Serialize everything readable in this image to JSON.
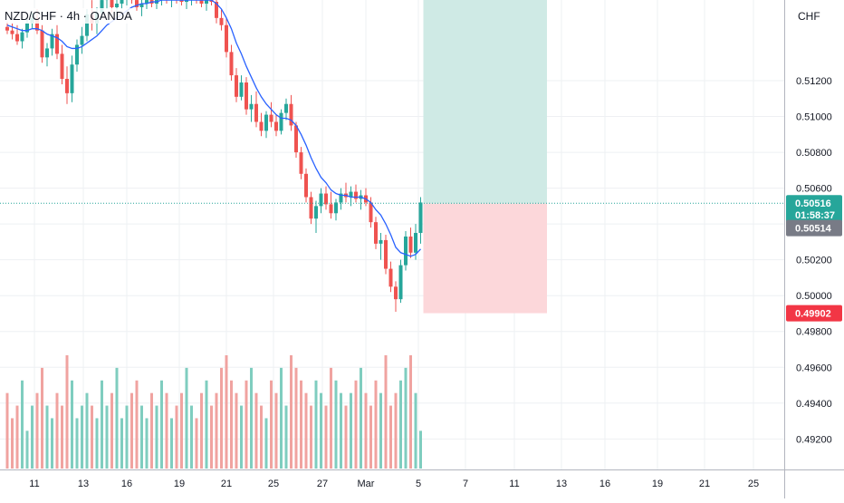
{
  "header": {
    "symbol_title": "NZD/CHF · 4h · OANDA",
    "currency": "CHF"
  },
  "colors": {
    "up": "#26a69a",
    "down": "#ef5350",
    "volume_up": "#7fcdbf",
    "volume_down": "#f0a3a0",
    "ma_line": "#2962ff",
    "target_zone": "#cfeae5",
    "stop_zone": "#fcd7da",
    "price_tag": "#26a69a",
    "stop_tag": "#f23645",
    "entry_tag": "#787b86",
    "grid": "#eef0f3"
  },
  "chart_data": {
    "type": "candlestick",
    "title": "NZD/CHF · 4h · OANDA",
    "ylabel": "CHF",
    "ylim": [
      0.4906,
      0.5162
    ],
    "y_ticks": [
      "0.51200",
      "0.51000",
      "0.50800",
      "0.50600",
      "0.50400",
      "0.50200",
      "0.50000",
      "0.49800",
      "0.49600",
      "0.49400",
      "0.49200"
    ],
    "x_ticks": [
      "11",
      "13",
      "16",
      "19",
      "21",
      "25",
      "27",
      "Mar",
      "5",
      "7",
      "11",
      "13",
      "16",
      "19",
      "21",
      "25"
    ],
    "current_price": "0.50516",
    "countdown": "01:58:37",
    "entry_price": "0.50514",
    "stop_price": "0.49902",
    "ma_indicator": "blue moving average",
    "candles": [
      [
        0.515,
        0.5153,
        0.5146,
        0.5148
      ],
      [
        0.5148,
        0.5152,
        0.5143,
        0.5146
      ],
      [
        0.5146,
        0.5151,
        0.514,
        0.5142
      ],
      [
        0.5142,
        0.5149,
        0.5138,
        0.5147
      ],
      [
        0.5147,
        0.5155,
        0.5144,
        0.5152
      ],
      [
        0.5152,
        0.5158,
        0.5149,
        0.5155
      ],
      [
        0.5155,
        0.516,
        0.5146,
        0.5148
      ],
      [
        0.5148,
        0.5151,
        0.513,
        0.5133
      ],
      [
        0.5133,
        0.5141,
        0.5128,
        0.5138
      ],
      [
        0.5138,
        0.5149,
        0.5134,
        0.5146
      ],
      [
        0.5146,
        0.5151,
        0.5132,
        0.5135
      ],
      [
        0.5135,
        0.514,
        0.5118,
        0.5121
      ],
      [
        0.5121,
        0.5128,
        0.5107,
        0.5113
      ],
      [
        0.5113,
        0.5134,
        0.5108,
        0.5129
      ],
      [
        0.5129,
        0.5143,
        0.5125,
        0.514
      ],
      [
        0.514,
        0.515,
        0.5135,
        0.5145
      ],
      [
        0.5145,
        0.516,
        0.5142,
        0.5157
      ],
      [
        0.5157,
        0.5165,
        0.5148,
        0.5152
      ],
      [
        0.5152,
        0.5161,
        0.5146,
        0.5158
      ],
      [
        0.5158,
        0.5168,
        0.5155,
        0.5165
      ],
      [
        0.5165,
        0.517,
        0.516,
        0.5166
      ],
      [
        0.5166,
        0.517,
        0.5158,
        0.5161
      ],
      [
        0.5161,
        0.5167,
        0.5155,
        0.5163
      ],
      [
        0.5163,
        0.5169,
        0.516,
        0.5166
      ],
      [
        0.5166,
        0.5172,
        0.5162,
        0.5168
      ],
      [
        0.5168,
        0.5172,
        0.5163,
        0.5165
      ],
      [
        0.5165,
        0.517,
        0.5159,
        0.5161
      ],
      [
        0.5161,
        0.5166,
        0.5156,
        0.5163
      ],
      [
        0.5163,
        0.5168,
        0.516,
        0.5165
      ],
      [
        0.5165,
        0.5169,
        0.5161,
        0.5163
      ],
      [
        0.5163,
        0.5167,
        0.516,
        0.5166
      ],
      [
        0.5166,
        0.5171,
        0.5162,
        0.5168
      ],
      [
        0.5168,
        0.5172,
        0.5163,
        0.5165
      ],
      [
        0.5165,
        0.517,
        0.5161,
        0.5167
      ],
      [
        0.5167,
        0.5171,
        0.5163,
        0.5166
      ],
      [
        0.5166,
        0.517,
        0.5162,
        0.5164
      ],
      [
        0.5164,
        0.5169,
        0.516,
        0.5166
      ],
      [
        0.5166,
        0.517,
        0.5162,
        0.5168
      ],
      [
        0.5168,
        0.5172,
        0.5163,
        0.5165
      ],
      [
        0.5165,
        0.5169,
        0.5161,
        0.5163
      ],
      [
        0.5163,
        0.5168,
        0.5159,
        0.5166
      ],
      [
        0.5166,
        0.517,
        0.5162,
        0.5164
      ],
      [
        0.5164,
        0.5168,
        0.5152,
        0.5155
      ],
      [
        0.5155,
        0.516,
        0.5148,
        0.5151
      ],
      [
        0.5151,
        0.5155,
        0.5133,
        0.5136
      ],
      [
        0.5136,
        0.514,
        0.512,
        0.5123
      ],
      [
        0.5123,
        0.5127,
        0.5108,
        0.5111
      ],
      [
        0.5111,
        0.5123,
        0.5109,
        0.5119
      ],
      [
        0.5119,
        0.5122,
        0.5101,
        0.5104
      ],
      [
        0.5104,
        0.5112,
        0.5097,
        0.5107
      ],
      [
        0.5107,
        0.5114,
        0.5094,
        0.5097
      ],
      [
        0.5097,
        0.5102,
        0.5089,
        0.5092
      ],
      [
        0.5092,
        0.5103,
        0.5088,
        0.5101
      ],
      [
        0.5101,
        0.5108,
        0.5094,
        0.5097
      ],
      [
        0.5097,
        0.5101,
        0.5089,
        0.5092
      ],
      [
        0.5092,
        0.5104,
        0.509,
        0.5102
      ],
      [
        0.5102,
        0.511,
        0.5098,
        0.5107
      ],
      [
        0.5107,
        0.5112,
        0.5092,
        0.5095
      ],
      [
        0.5095,
        0.5097,
        0.5077,
        0.508
      ],
      [
        0.508,
        0.5083,
        0.5065,
        0.5068
      ],
      [
        0.5068,
        0.5071,
        0.5052,
        0.5055
      ],
      [
        0.5055,
        0.5058,
        0.504,
        0.5043
      ],
      [
        0.5043,
        0.5053,
        0.5035,
        0.505
      ],
      [
        0.505,
        0.506,
        0.5046,
        0.5057
      ],
      [
        0.5057,
        0.5061,
        0.5048,
        0.5051
      ],
      [
        0.5051,
        0.5058,
        0.5043,
        0.5046
      ],
      [
        0.5046,
        0.5054,
        0.5042,
        0.5052
      ],
      [
        0.5052,
        0.506,
        0.5048,
        0.5057
      ],
      [
        0.5057,
        0.5063,
        0.5052,
        0.5055
      ],
      [
        0.5055,
        0.5061,
        0.505,
        0.5058
      ],
      [
        0.5058,
        0.5062,
        0.5052,
        0.5054
      ],
      [
        0.5054,
        0.5059,
        0.5048,
        0.5056
      ],
      [
        0.5056,
        0.506,
        0.505,
        0.5052
      ],
      [
        0.5052,
        0.5055,
        0.5038,
        0.5041
      ],
      [
        0.5041,
        0.5044,
        0.5026,
        0.5029
      ],
      [
        0.5029,
        0.5035,
        0.502,
        0.5031
      ],
      [
        0.5031,
        0.5034,
        0.5012,
        0.5015
      ],
      [
        0.5015,
        0.5019,
        0.5002,
        0.5005
      ],
      [
        0.5005,
        0.5008,
        0.4991,
        0.4998
      ],
      [
        0.4998,
        0.502,
        0.4996,
        0.5017
      ],
      [
        0.5017,
        0.5036,
        0.5014,
        0.5033
      ],
      [
        0.5033,
        0.5038,
        0.5021,
        0.5024
      ],
      [
        0.5024,
        0.504,
        0.502,
        0.5035
      ],
      [
        0.5035,
        0.5055,
        0.5029,
        0.5052
      ]
    ],
    "volumes": [
      6,
      4,
      5,
      7,
      3,
      5,
      6,
      8,
      5,
      4,
      6,
      5,
      9,
      7,
      4,
      5,
      6,
      5,
      4,
      7,
      5,
      6,
      8,
      4,
      5,
      6,
      7,
      5,
      4,
      6,
      5,
      7,
      6,
      4,
      5,
      6,
      8,
      5,
      4,
      6,
      7,
      5,
      6,
      8,
      9,
      7,
      6,
      5,
      7,
      8,
      6,
      5,
      4,
      7,
      6,
      8,
      5,
      9,
      8,
      7,
      6,
      5,
      7,
      6,
      5,
      8,
      7,
      6,
      5,
      6,
      7,
      8,
      6,
      5,
      7,
      6,
      9,
      5,
      6,
      7,
      8,
      9,
      6,
      3
    ],
    "ma_values": [
      0.5151,
      0.515,
      0.5149,
      0.5148,
      0.5148,
      0.5149,
      0.5149,
      0.5148,
      0.5146,
      0.5145,
      0.5144,
      0.5142,
      0.5139,
      0.5138,
      0.5138,
      0.5139,
      0.5141,
      0.5143,
      0.5145,
      0.5148,
      0.5151,
      0.5153,
      0.5155,
      0.5157,
      0.5159,
      0.5161,
      0.5162,
      0.5163,
      0.5163,
      0.5164,
      0.5164,
      0.5165,
      0.5165,
      0.5165,
      0.5165,
      0.5165,
      0.5165,
      0.5165,
      0.5165,
      0.5165,
      0.5165,
      0.5165,
      0.5163,
      0.516,
      0.5155,
      0.5149,
      0.5141,
      0.5135,
      0.5128,
      0.5122,
      0.5116,
      0.5111,
      0.5107,
      0.5104,
      0.5101,
      0.5099,
      0.5099,
      0.5098,
      0.5095,
      0.509,
      0.5084,
      0.5077,
      0.5071,
      0.5066,
      0.5063,
      0.5059,
      0.5057,
      0.5056,
      0.5056,
      0.5055,
      0.5055,
      0.5055,
      0.5054,
      0.5052,
      0.5048,
      0.5045,
      0.504,
      0.5034,
      0.5027,
      0.5024,
      0.5023,
      0.5022,
      0.5023,
      0.5026
    ]
  }
}
